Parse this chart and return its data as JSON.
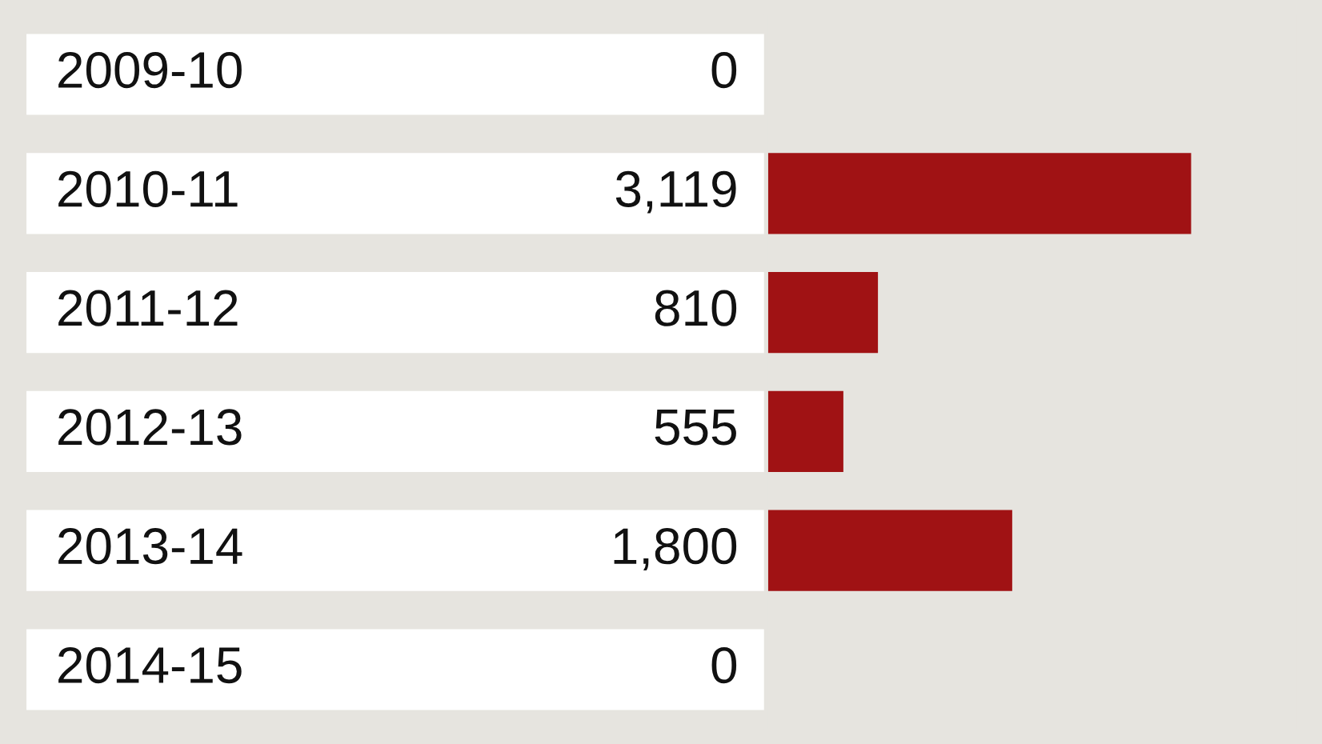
{
  "chart_data": {
    "type": "bar",
    "orientation": "horizontal",
    "categories": [
      "2009-10",
      "2010-11",
      "2011-12",
      "2012-13",
      "2013-14",
      "2014-15"
    ],
    "values": [
      0,
      3119,
      810,
      555,
      1800,
      0
    ],
    "value_labels": [
      "0",
      "3,119",
      "810",
      "555",
      "1,800",
      "0"
    ],
    "color": "#a01214"
  }
}
